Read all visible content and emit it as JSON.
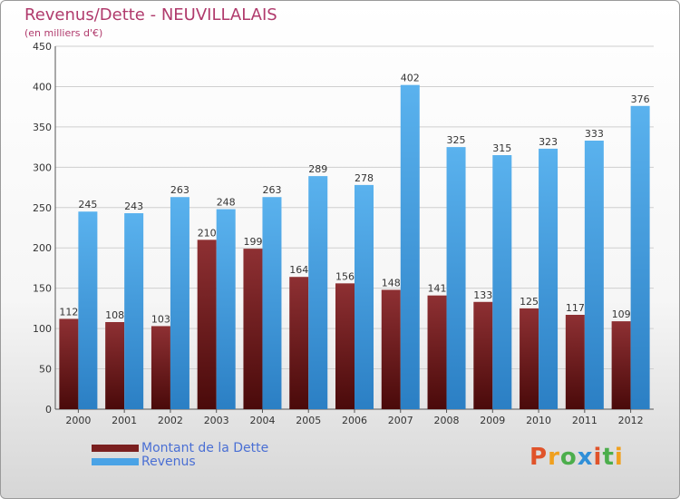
{
  "header": {
    "title": "Revenus/Dette - NEUVILLALAIS",
    "subtitle": "(en milliers d'€)"
  },
  "legend": [
    {
      "label": "Montant de la Dette",
      "color": "#7a1f1f"
    },
    {
      "label": "Revenus",
      "color": "#4aa3e6"
    }
  ],
  "brand": {
    "text": "Proxiti",
    "colors": [
      "#e0532a",
      "#f0a01e",
      "#4cae4c",
      "#2f8fd8",
      "#e0532a",
      "#4cae4c",
      "#f0a01e"
    ]
  },
  "chart_data": {
    "type": "bar",
    "categories": [
      "2000",
      "2001",
      "2002",
      "2003",
      "2004",
      "2005",
      "2006",
      "2007",
      "2008",
      "2009",
      "2010",
      "2011",
      "2012"
    ],
    "series": [
      {
        "name": "Montant de la Dette",
        "color": "#7a1f1f",
        "values": [
          112,
          108,
          103,
          210,
          199,
          164,
          156,
          148,
          141,
          133,
          125,
          117,
          109
        ]
      },
      {
        "name": "Revenus",
        "color": "#4aa3e6",
        "values": [
          245,
          243,
          263,
          248,
          263,
          289,
          278,
          402,
          325,
          315,
          323,
          333,
          376
        ]
      }
    ],
    "ylim": [
      0,
      450
    ],
    "yticks": [
      0,
      50,
      100,
      150,
      200,
      250,
      300,
      350,
      400,
      450
    ],
    "grid": true
  }
}
